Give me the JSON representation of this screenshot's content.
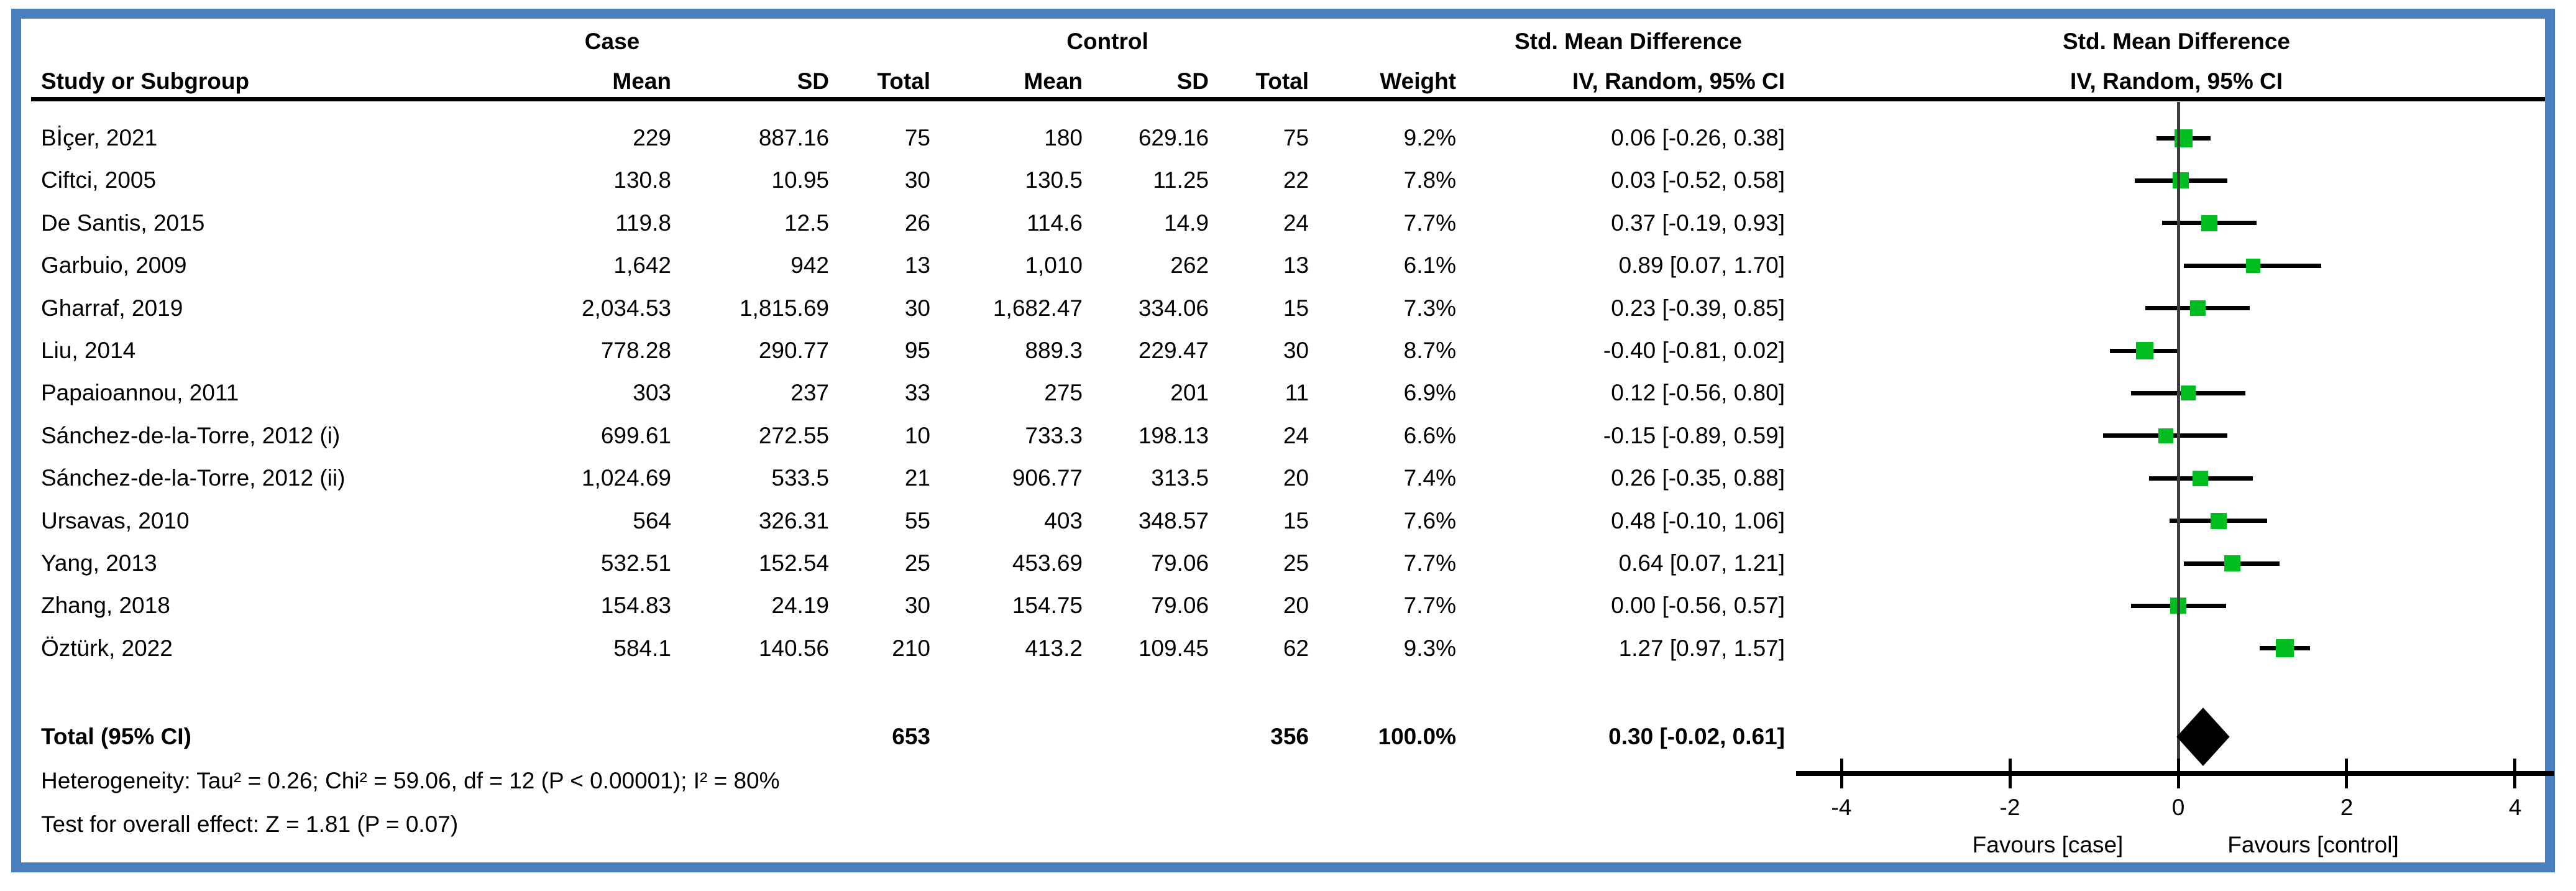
{
  "colors": {
    "frame_blue": "#4A7EBE",
    "marker_green": "#00BE20",
    "zero_line_gray": "#3C3C3C",
    "axis_black": "#000000"
  },
  "header": {
    "study": "Study or Subgroup",
    "case_group": "Case",
    "control_group": "Control",
    "mean": "Mean",
    "sd": "SD",
    "total": "Total",
    "weight": "Weight",
    "smd_title_left": "Std. Mean Difference",
    "smd_sub_left": "IV, Random, 95% CI",
    "smd_title_right": "Std. Mean Difference",
    "smd_sub_right": "IV, Random, 95% CI"
  },
  "chart_data": {
    "type": "forest",
    "effect_measure": "Std. Mean Difference",
    "model": "IV, Random, 95% CI",
    "axis": {
      "min": -4,
      "max": 4,
      "ticks": [
        "-4",
        "-2",
        "0",
        "2",
        "4"
      ],
      "tick_values": [
        -4,
        -2,
        0,
        2,
        4
      ],
      "favours_left": "Favours [case]",
      "favours_right": "Favours [control]"
    },
    "studies": [
      {
        "name": "Bİçer, 2021",
        "case_mean": "229",
        "case_sd": "887.16",
        "case_total": "75",
        "control_mean": "180",
        "control_sd": "629.16",
        "control_total": "75",
        "weight": "9.2%",
        "weight_num": 9.2,
        "ci_label": "0.06 [-0.26, 0.38]",
        "est": 0.06,
        "lo": -0.26,
        "hi": 0.38
      },
      {
        "name": "Ciftci, 2005",
        "case_mean": "130.8",
        "case_sd": "10.95",
        "case_total": "30",
        "control_mean": "130.5",
        "control_sd": "11.25",
        "control_total": "22",
        "weight": "7.8%",
        "weight_num": 7.8,
        "ci_label": "0.03 [-0.52, 0.58]",
        "est": 0.03,
        "lo": -0.52,
        "hi": 0.58
      },
      {
        "name": "De Santis, 2015",
        "case_mean": "119.8",
        "case_sd": "12.5",
        "case_total": "26",
        "control_mean": "114.6",
        "control_sd": "14.9",
        "control_total": "24",
        "weight": "7.7%",
        "weight_num": 7.7,
        "ci_label": "0.37 [-0.19, 0.93]",
        "est": 0.37,
        "lo": -0.19,
        "hi": 0.93
      },
      {
        "name": "Garbuio, 2009",
        "case_mean": "1,642",
        "case_sd": "942",
        "case_total": "13",
        "control_mean": "1,010",
        "control_sd": "262",
        "control_total": "13",
        "weight": "6.1%",
        "weight_num": 6.1,
        "ci_label": "0.89 [0.07, 1.70]",
        "est": 0.89,
        "lo": 0.07,
        "hi": 1.7
      },
      {
        "name": "Gharraf, 2019",
        "case_mean": "2,034.53",
        "case_sd": "1,815.69",
        "case_total": "30",
        "control_mean": "1,682.47",
        "control_sd": "334.06",
        "control_total": "15",
        "weight": "7.3%",
        "weight_num": 7.3,
        "ci_label": "0.23 [-0.39, 0.85]",
        "est": 0.23,
        "lo": -0.39,
        "hi": 0.85
      },
      {
        "name": "Liu, 2014",
        "case_mean": "778.28",
        "case_sd": "290.77",
        "case_total": "95",
        "control_mean": "889.3",
        "control_sd": "229.47",
        "control_total": "30",
        "weight": "8.7%",
        "weight_num": 8.7,
        "ci_label": "-0.40 [-0.81, 0.02]",
        "est": -0.4,
        "lo": -0.81,
        "hi": 0.02
      },
      {
        "name": "Papaioannou, 2011",
        "case_mean": "303",
        "case_sd": "237",
        "case_total": "33",
        "control_mean": "275",
        "control_sd": "201",
        "control_total": "11",
        "weight": "6.9%",
        "weight_num": 6.9,
        "ci_label": "0.12 [-0.56, 0.80]",
        "est": 0.12,
        "lo": -0.56,
        "hi": 0.8
      },
      {
        "name": "Sánchez-de-la-Torre, 2012 (i)",
        "case_mean": "699.61",
        "case_sd": "272.55",
        "case_total": "10",
        "control_mean": "733.3",
        "control_sd": "198.13",
        "control_total": "24",
        "weight": "6.6%",
        "weight_num": 6.6,
        "ci_label": "-0.15 [-0.89, 0.59]",
        "est": -0.15,
        "lo": -0.89,
        "hi": 0.59
      },
      {
        "name": "Sánchez-de-la-Torre, 2012 (ii)",
        "case_mean": "1,024.69",
        "case_sd": "533.5",
        "case_total": "21",
        "control_mean": "906.77",
        "control_sd": "313.5",
        "control_total": "20",
        "weight": "7.4%",
        "weight_num": 7.4,
        "ci_label": "0.26 [-0.35, 0.88]",
        "est": 0.26,
        "lo": -0.35,
        "hi": 0.88
      },
      {
        "name": "Ursavas, 2010",
        "case_mean": "564",
        "case_sd": "326.31",
        "case_total": "55",
        "control_mean": "403",
        "control_sd": "348.57",
        "control_total": "15",
        "weight": "7.6%",
        "weight_num": 7.6,
        "ci_label": "0.48 [-0.10, 1.06]",
        "est": 0.48,
        "lo": -0.1,
        "hi": 1.06
      },
      {
        "name": "Yang, 2013",
        "case_mean": "532.51",
        "case_sd": "152.54",
        "case_total": "25",
        "control_mean": "453.69",
        "control_sd": "79.06",
        "control_total": "25",
        "weight": "7.7%",
        "weight_num": 7.7,
        "ci_label": "0.64 [0.07, 1.21]",
        "est": 0.64,
        "lo": 0.07,
        "hi": 1.21
      },
      {
        "name": "Zhang, 2018",
        "case_mean": "154.83",
        "case_sd": "24.19",
        "case_total": "30",
        "control_mean": "154.75",
        "control_sd": "79.06",
        "control_total": "20",
        "weight": "7.7%",
        "weight_num": 7.7,
        "ci_label": "0.00 [-0.56, 0.57]",
        "est": 0.0,
        "lo": -0.56,
        "hi": 0.57
      },
      {
        "name": "Öztürk, 2022",
        "case_mean": "584.1",
        "case_sd": "140.56",
        "case_total": "210",
        "control_mean": "413.2",
        "control_sd": "109.45",
        "control_total": "62",
        "weight": "9.3%",
        "weight_num": 9.3,
        "ci_label": "1.27 [0.97, 1.57]",
        "est": 1.27,
        "lo": 0.97,
        "hi": 1.57
      }
    ],
    "total": {
      "label": "Total (95% CI)",
      "case_total": "653",
      "control_total": "356",
      "weight": "100.0%",
      "ci_label": "0.30 [-0.02, 0.61]",
      "est": 0.3,
      "lo": -0.02,
      "hi": 0.61
    },
    "heterogeneity": "Heterogeneity: Tau² = 0.26; Chi² = 59.06, df = 12 (P < 0.00001); I² = 80%",
    "overall_effect": "Test for overall effect: Z = 1.81 (P = 0.07)"
  }
}
